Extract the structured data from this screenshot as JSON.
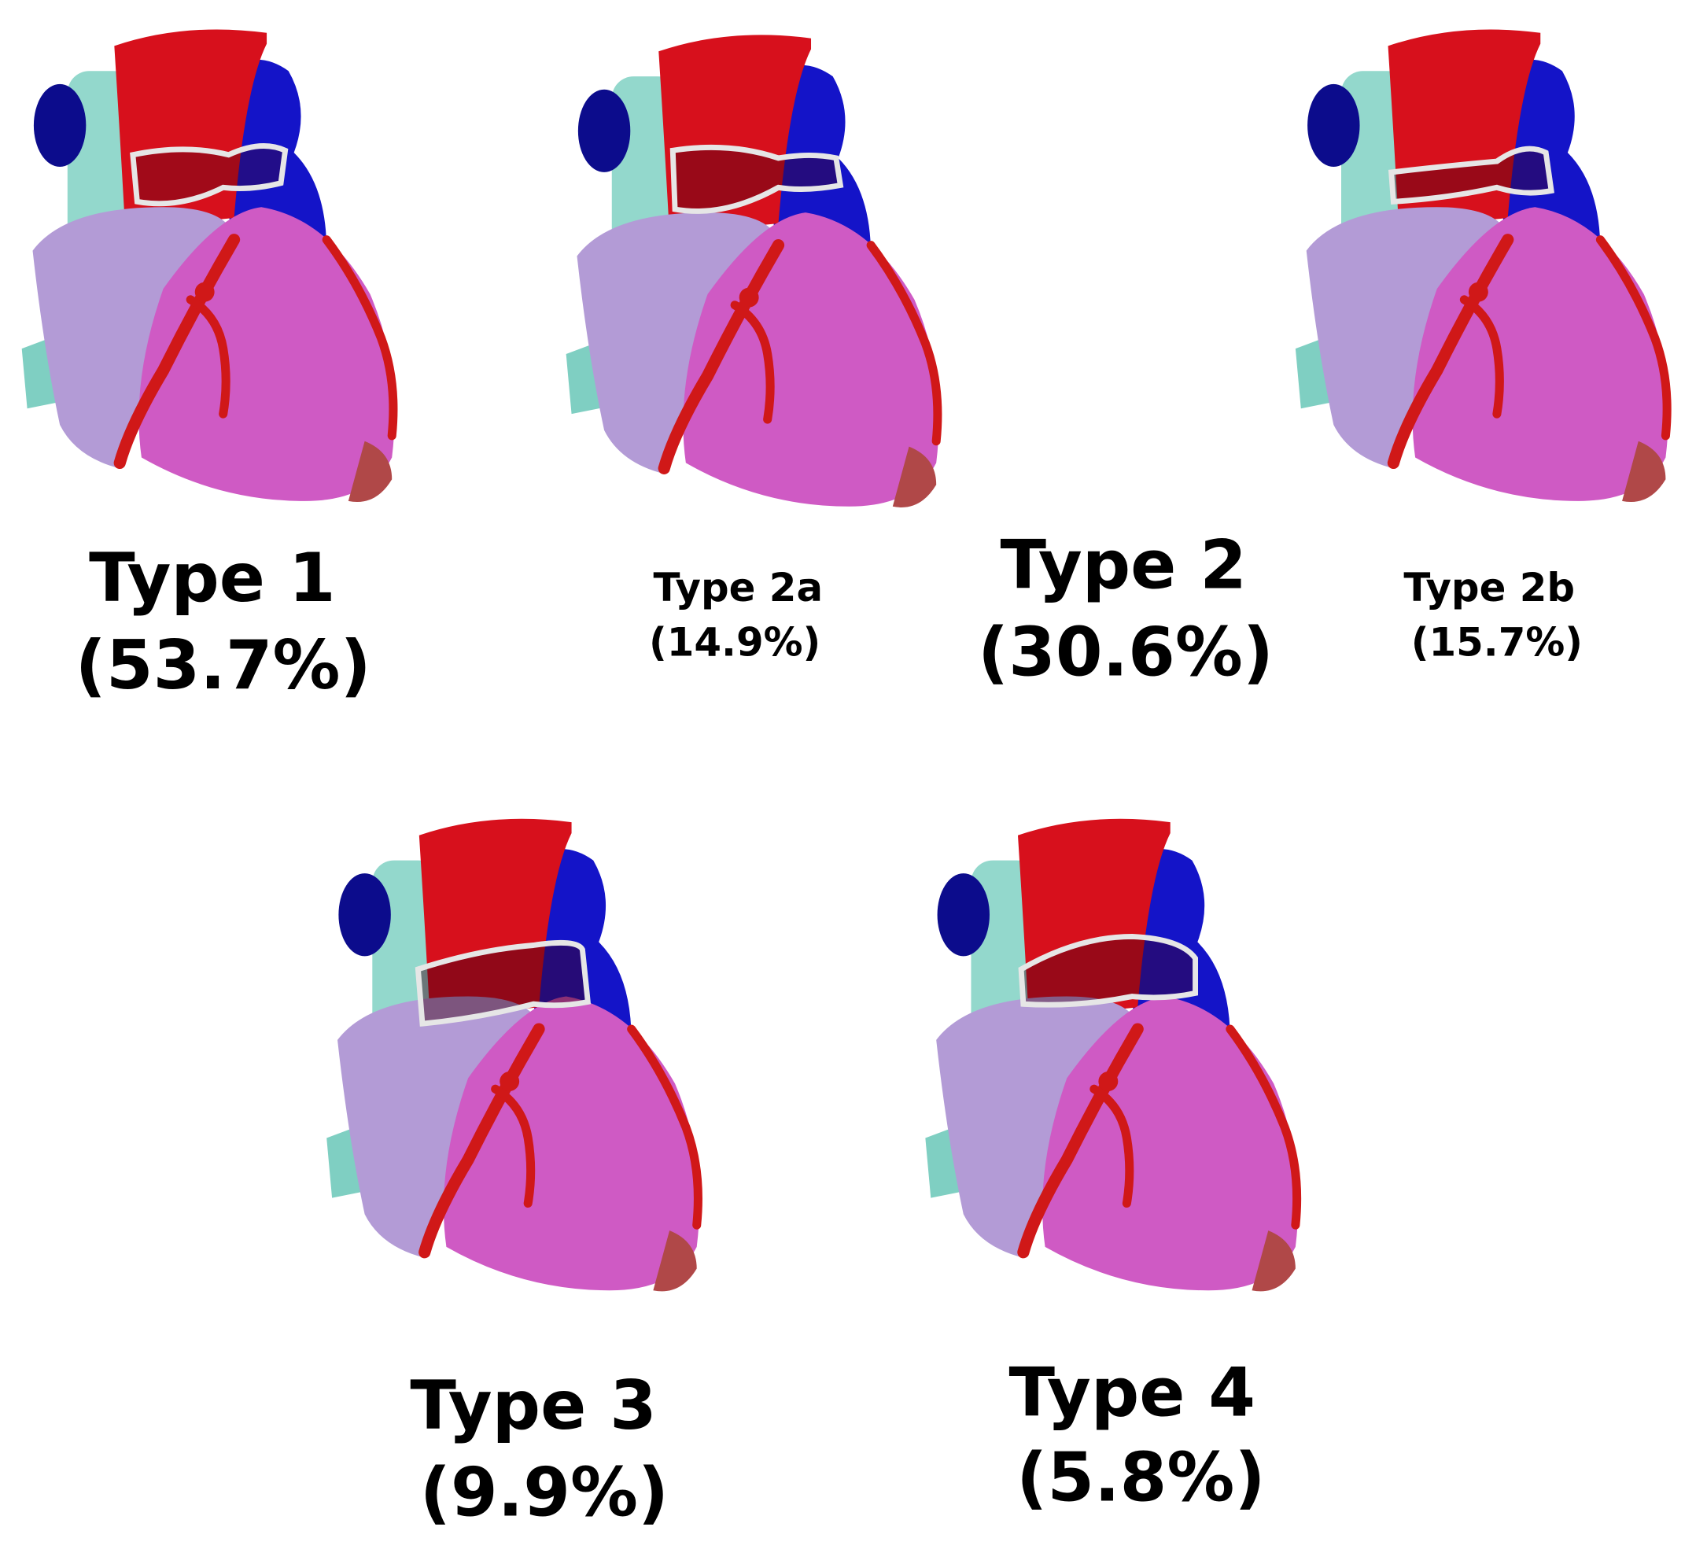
{
  "panels": [
    {
      "title": "Type 1",
      "share": "(53.7%)"
    },
    {
      "title": "Type 2a",
      "share": "(14.9%)"
    },
    {
      "title": "Type 2",
      "share": "(30.6%)"
    },
    {
      "title": "Type 2b",
      "share": "(15.7%)"
    },
    {
      "title": "Type 3",
      "share": "(9.9%)"
    },
    {
      "title": "Type 4",
      "share": "(5.8%)"
    }
  ]
}
